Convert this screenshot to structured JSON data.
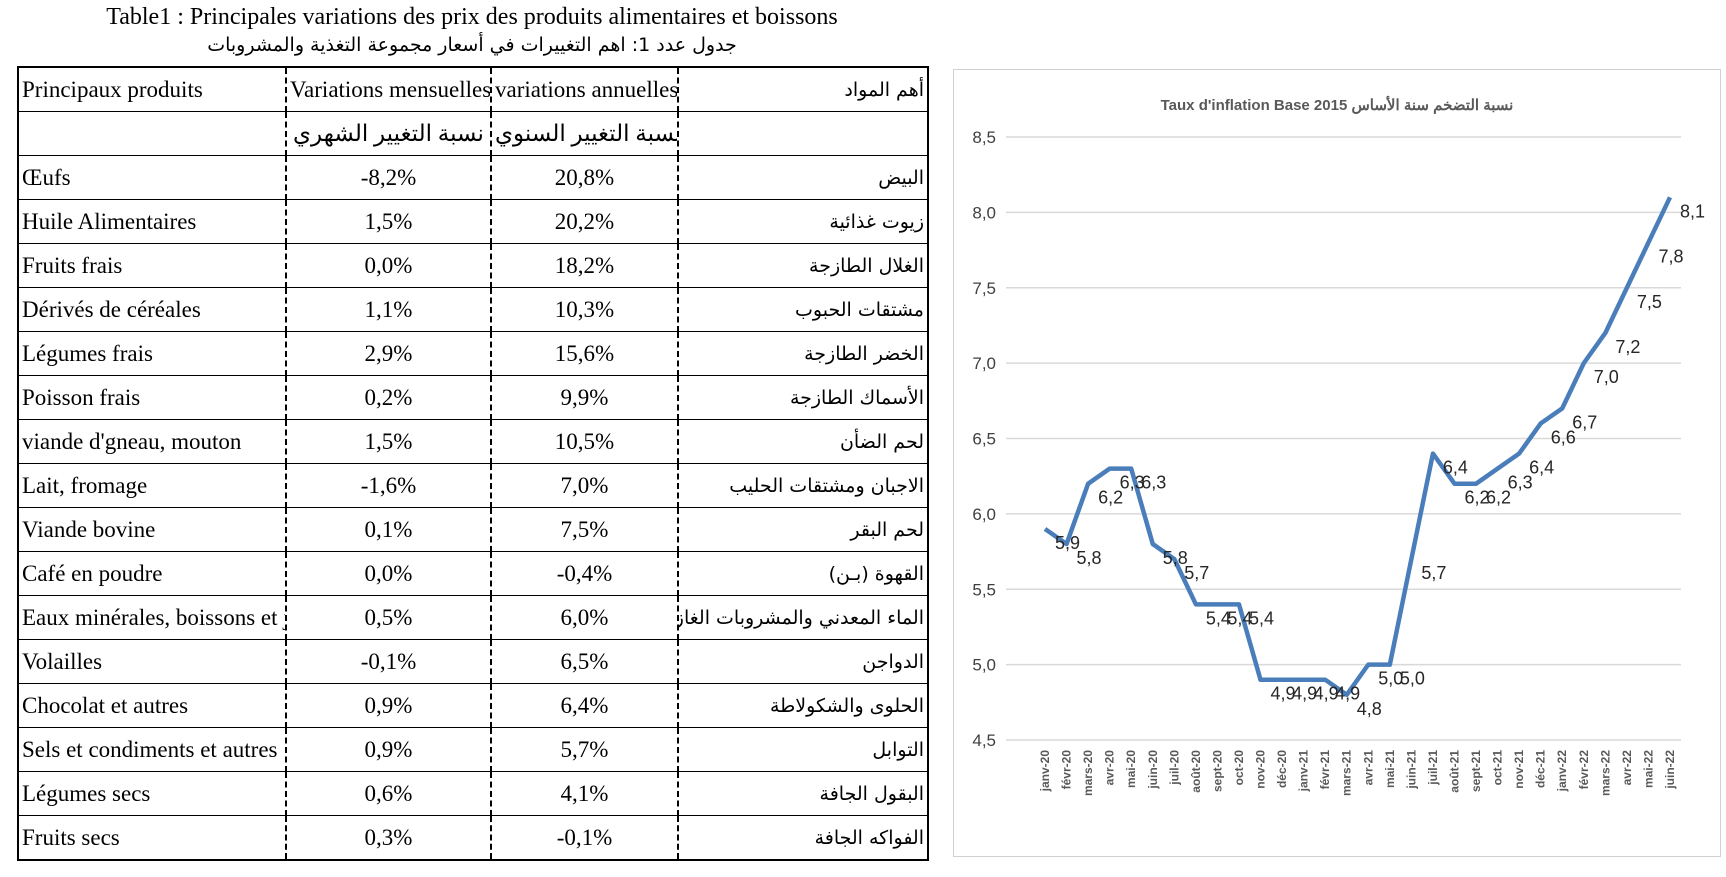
{
  "table": {
    "title": "Table1 : Principales variations des prix des produits alimentaires et boissons",
    "subtitle": "جدول عدد 1: اهم التغييرات في أسعار مجموعة التغذية والمشروبات",
    "header": [
      "Principaux produits",
      "Variations mensuelles",
      "variations annuelles",
      "أهم المواد"
    ],
    "header_ar": [
      "نسبة التغيير الشهري",
      "نسبة التغيير السنوي"
    ],
    "rows": [
      [
        "Œufs",
        "-8,2%",
        "20,8%",
        "البيض"
      ],
      [
        "Huile Alimentaires",
        "1,5%",
        "20,2%",
        "زيوت غذائية"
      ],
      [
        "Fruits frais",
        "0,0%",
        "18,2%",
        "الغلال الطازجة"
      ],
      [
        "Dérivés de céréales",
        "1,1%",
        "10,3%",
        "مشتقات الحبوب"
      ],
      [
        "Légumes frais",
        "2,9%",
        "15,6%",
        "الخضر الطازجة"
      ],
      [
        "Poisson frais",
        "0,2%",
        "9,9%",
        "الأسماك الطازجة"
      ],
      [
        "viande d'gneau, mouton",
        "1,5%",
        "10,5%",
        "لحم الضأن"
      ],
      [
        "Lait, fromage",
        "-1,6%",
        "7,0%",
        "الاجبان ومشتقات الحليب"
      ],
      [
        "Viande bovine",
        "0,1%",
        "7,5%",
        "لحم البقر"
      ],
      [
        "Café en poudre",
        "0,0%",
        "-0,4%",
        "القهوة (بـن)"
      ],
      [
        "Eaux minérales, boissons et ju",
        "0,5%",
        "6,0%",
        "الماء المعدني والمشروبات الغازية"
      ],
      [
        "Volailles",
        "-0,1%",
        "6,5%",
        "الدواجن"
      ],
      [
        "Chocolat et autres",
        "0,9%",
        "6,4%",
        "الحلوى والشكولاطة"
      ],
      [
        "Sels et condiments et autres",
        "0,9%",
        "5,7%",
        "التوابل"
      ],
      [
        "Légumes secs",
        "0,6%",
        "4,1%",
        "البقول الجافة"
      ],
      [
        "Fruits secs",
        "0,3%",
        "-0,1%",
        "الفواكه الجافة"
      ]
    ]
  },
  "chart_data": {
    "type": "line",
    "title": "Taux d'inflation Base 2015 نسبة التضخم سنة الأساس",
    "categories": [
      "janv-20",
      "févr-20",
      "mars-20",
      "avr-20",
      "mai-20",
      "juin-20",
      "juil-20",
      "août-20",
      "sept-20",
      "oct-20",
      "nov-20",
      "déc-20",
      "janv-21",
      "févr-21",
      "mars-21",
      "avr-21",
      "mai-21",
      "juin-21",
      "juil-21",
      "août-21",
      "sept-21",
      "oct-21",
      "nov-21",
      "déc-21",
      "janv-22",
      "févr-22",
      "mars-22",
      "avr-22",
      "mai-22",
      "juin-22"
    ],
    "series": [
      {
        "color": "#4a7ebb",
        "values": [
          5.9,
          5.8,
          6.2,
          6.3,
          6.3,
          5.8,
          5.7,
          5.4,
          5.4,
          5.4,
          4.9,
          4.9,
          4.9,
          4.9,
          4.8,
          5.0,
          5.0,
          5.7,
          6.4,
          6.2,
          6.2,
          6.3,
          6.4,
          6.6,
          6.7,
          7.0,
          7.2,
          7.5,
          7.8,
          8.1
        ],
        "value_labels": [
          "5,9",
          "5,8",
          "6,2",
          "6,3",
          "6,3",
          "5,8",
          "5,7",
          "5,4",
          "5,4",
          "5,4",
          "4,9",
          "4,9",
          "4,9",
          "4,9",
          "4,8",
          "5,0",
          "5,0",
          "5,7",
          "6,4",
          "6,2",
          "6,2",
          "6,3",
          "6,4",
          "6,6",
          "6,7",
          "7,0",
          "7,2",
          "7,5",
          "7,8",
          "8,1"
        ]
      }
    ],
    "ylim": [
      4.5,
      8.5
    ],
    "yticks": [
      {
        "value": 4.5,
        "label": "4,5"
      },
      {
        "value": 5,
        "label": "5,0"
      },
      {
        "value": 5.5,
        "label": "5,5"
      },
      {
        "value": 6,
        "label": "6,0"
      },
      {
        "value": 6.5,
        "label": "6,5"
      },
      {
        "value": 7,
        "label": "7,0"
      },
      {
        "value": 7.5,
        "label": "7,5"
      },
      {
        "value": 8,
        "label": "8,0"
      },
      {
        "value": 8.5,
        "label": "8,5"
      }
    ],
    "grid": true
  }
}
